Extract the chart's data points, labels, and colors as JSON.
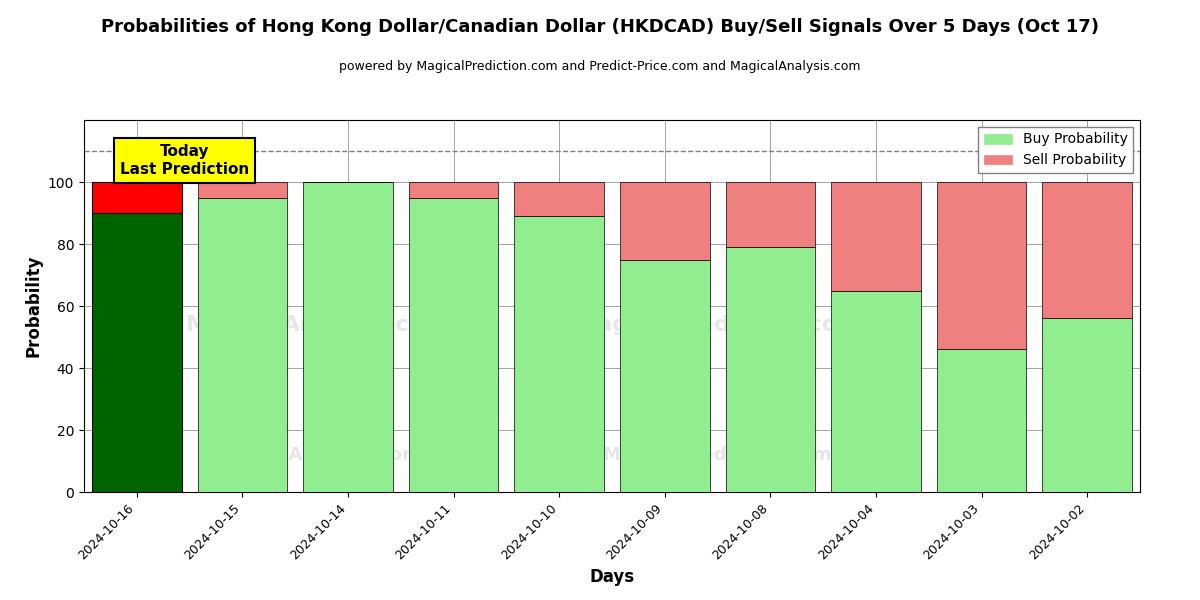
{
  "title": "Probabilities of Hong Kong Dollar/Canadian Dollar (HKDCAD) Buy/Sell Signals Over 5 Days (Oct 17)",
  "subtitle": "powered by MagicalPrediction.com and Predict-Price.com and MagicalAnalysis.com",
  "xlabel": "Days",
  "ylabel": "Probability",
  "dates": [
    "2024-10-16",
    "2024-10-15",
    "2024-10-14",
    "2024-10-11",
    "2024-10-10",
    "2024-10-09",
    "2024-10-08",
    "2024-10-04",
    "2024-10-03",
    "2024-10-02"
  ],
  "buy_probs": [
    90,
    95,
    100,
    95,
    89,
    75,
    79,
    65,
    46,
    56
  ],
  "sell_probs": [
    10,
    5,
    0,
    5,
    11,
    25,
    21,
    35,
    54,
    44
  ],
  "today_buy_color": "#006400",
  "today_sell_color": "#FF0000",
  "buy_color": "#90EE90",
  "sell_color": "#F08080",
  "today_label": "Today\nLast Prediction",
  "dashed_line_y": 110,
  "ylim": [
    0,
    120
  ],
  "yticks": [
    0,
    20,
    40,
    60,
    80,
    100
  ],
  "background_color": "#ffffff",
  "legend_buy": "Buy Probability",
  "legend_sell": "Sell Probability",
  "bar_width": 0.85
}
